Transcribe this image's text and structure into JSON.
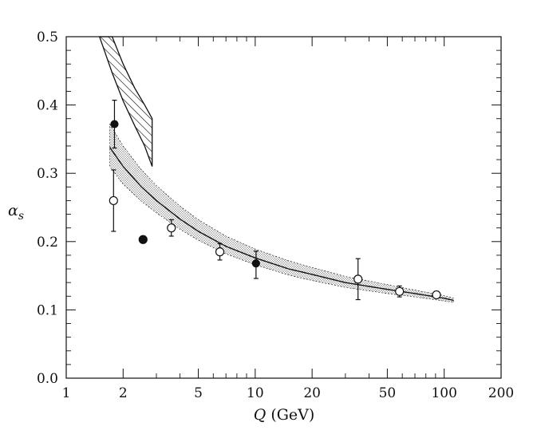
{
  "chart_data": {
    "type": "scatter",
    "x_scale": "log",
    "xlim": [
      1,
      200
    ],
    "ylim": [
      0.0,
      0.5
    ],
    "xlabel_main": "Q",
    "xlabel_unit": " (GeV)",
    "ylabel_main": "α",
    "ylabel_sub": "s",
    "x_ticks": [
      {
        "value": 1,
        "label": "1"
      },
      {
        "value": 2,
        "label": "2"
      },
      {
        "value": 5,
        "label": "5"
      },
      {
        "value": 10,
        "label": "10"
      },
      {
        "value": 20,
        "label": "20"
      },
      {
        "value": 50,
        "label": "50"
      },
      {
        "value": 100,
        "label": "100"
      },
      {
        "value": 200,
        "label": "200"
      }
    ],
    "y_ticks": [
      {
        "value": 0.0,
        "label": "0.0"
      },
      {
        "value": 0.1,
        "label": "0.1"
      },
      {
        "value": 0.2,
        "label": "0.2"
      },
      {
        "value": 0.3,
        "label": "0.3"
      },
      {
        "value": 0.4,
        "label": "0.4"
      },
      {
        "value": 0.5,
        "label": "0.5"
      }
    ],
    "grid": false,
    "series": [
      {
        "kind": "open-points",
        "points": [
          {
            "x": 1.78,
            "y": 0.26,
            "yerr_low": 0.045,
            "yerr_high": 0.045
          },
          {
            "x": 3.6,
            "y": 0.22,
            "yerr_low": 0.012,
            "yerr_high": 0.012
          },
          {
            "x": 6.5,
            "y": 0.185,
            "yerr_low": 0.012,
            "yerr_high": 0.012
          },
          {
            "x": 35,
            "y": 0.145,
            "yerr_low": 0.03,
            "yerr_high": 0.03
          },
          {
            "x": 58,
            "y": 0.127,
            "yerr_low": 0.008,
            "yerr_high": 0.008
          },
          {
            "x": 91,
            "y": 0.122,
            "yerr_low": 0.005,
            "yerr_high": 0.005
          }
        ]
      },
      {
        "kind": "filled-points",
        "points": [
          {
            "x": 1.8,
            "y": 0.372,
            "yerr_low": 0.035,
            "yerr_high": 0.035
          },
          {
            "x": 2.55,
            "y": 0.203,
            "yerr_low": 0,
            "yerr_high": 0
          },
          {
            "x": 10.1,
            "y": 0.168,
            "yerr_low": 0.022,
            "yerr_high": 0.018
          }
        ]
      },
      {
        "kind": "curve",
        "points": [
          {
            "x": 1.7,
            "y": 0.338
          },
          {
            "x": 2,
            "y": 0.31
          },
          {
            "x": 2.5,
            "y": 0.28
          },
          {
            "x": 3,
            "y": 0.26
          },
          {
            "x": 4,
            "y": 0.233
          },
          {
            "x": 5,
            "y": 0.215
          },
          {
            "x": 7,
            "y": 0.193
          },
          {
            "x": 10,
            "y": 0.176
          },
          {
            "x": 15,
            "y": 0.16
          },
          {
            "x": 20,
            "y": 0.152
          },
          {
            "x": 30,
            "y": 0.14
          },
          {
            "x": 50,
            "y": 0.13
          },
          {
            "x": 70,
            "y": 0.124
          },
          {
            "x": 100,
            "y": 0.117
          },
          {
            "x": 112,
            "y": 0.114
          }
        ]
      },
      {
        "kind": "dotted-band",
        "upper": [
          {
            "x": 1.7,
            "y": 0.372
          },
          {
            "x": 2,
            "y": 0.34
          },
          {
            "x": 2.5,
            "y": 0.305
          },
          {
            "x": 3,
            "y": 0.282
          },
          {
            "x": 4,
            "y": 0.252
          },
          {
            "x": 5,
            "y": 0.232
          },
          {
            "x": 7,
            "y": 0.208
          },
          {
            "x": 10,
            "y": 0.189
          },
          {
            "x": 15,
            "y": 0.172
          },
          {
            "x": 20,
            "y": 0.162
          },
          {
            "x": 30,
            "y": 0.149
          },
          {
            "x": 50,
            "y": 0.137
          },
          {
            "x": 70,
            "y": 0.129
          },
          {
            "x": 100,
            "y": 0.121
          },
          {
            "x": 112,
            "y": 0.117
          }
        ],
        "lower": [
          {
            "x": 1.7,
            "y": 0.31
          },
          {
            "x": 2,
            "y": 0.284
          },
          {
            "x": 2.5,
            "y": 0.259
          },
          {
            "x": 3,
            "y": 0.242
          },
          {
            "x": 4,
            "y": 0.218
          },
          {
            "x": 5,
            "y": 0.202
          },
          {
            "x": 7,
            "y": 0.182
          },
          {
            "x": 10,
            "y": 0.166
          },
          {
            "x": 15,
            "y": 0.151
          },
          {
            "x": 20,
            "y": 0.143
          },
          {
            "x": 30,
            "y": 0.133
          },
          {
            "x": 50,
            "y": 0.124
          },
          {
            "x": 70,
            "y": 0.119
          },
          {
            "x": 100,
            "y": 0.113
          },
          {
            "x": 112,
            "y": 0.111
          }
        ]
      },
      {
        "kind": "hatched-band",
        "upper": [
          {
            "x": 1.75,
            "y": 0.5
          },
          {
            "x": 2,
            "y": 0.46
          },
          {
            "x": 2.3,
            "y": 0.425
          },
          {
            "x": 2.6,
            "y": 0.4
          },
          {
            "x": 2.85,
            "y": 0.38
          }
        ],
        "lower": [
          {
            "x": 1.5,
            "y": 0.5
          },
          {
            "x": 1.75,
            "y": 0.447
          },
          {
            "x": 2,
            "y": 0.406
          },
          {
            "x": 2.3,
            "y": 0.37
          },
          {
            "x": 2.6,
            "y": 0.34
          },
          {
            "x": 2.85,
            "y": 0.31
          }
        ]
      }
    ]
  }
}
